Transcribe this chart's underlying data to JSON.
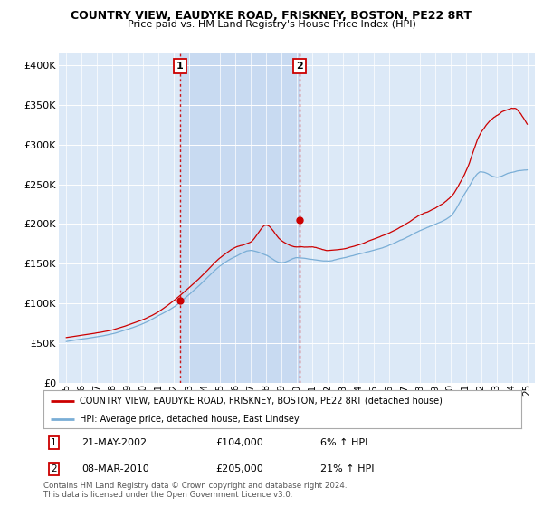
{
  "title": "COUNTRY VIEW, EAUDYKE ROAD, FRISKNEY, BOSTON, PE22 8RT",
  "subtitle": "Price paid vs. HM Land Registry's House Price Index (HPI)",
  "ylabel_ticks": [
    "£0",
    "£50K",
    "£100K",
    "£150K",
    "£200K",
    "£250K",
    "£300K",
    "£350K",
    "£400K"
  ],
  "ylabel_values": [
    0,
    50000,
    100000,
    150000,
    200000,
    250000,
    300000,
    350000,
    400000
  ],
  "ylim": [
    0,
    415000
  ],
  "xlim_start": 1994.5,
  "xlim_end": 2025.5,
  "background_color": "#dce9f7",
  "grid_color": "#ffffff",
  "red_line_color": "#cc0000",
  "blue_line_color": "#7aaed6",
  "vline_color": "#cc0000",
  "shade_color": "#c5d8f0",
  "purchase1_x": 2002.38,
  "purchase1_y": 104000,
  "purchase2_x": 2010.18,
  "purchase2_y": 205000,
  "legend_red": "COUNTRY VIEW, EAUDYKE ROAD, FRISKNEY, BOSTON, PE22 8RT (detached house)",
  "legend_blue": "HPI: Average price, detached house, East Lindsey",
  "ann1_label": "1",
  "ann1_date": "21-MAY-2002",
  "ann1_price": "£104,000",
  "ann1_hpi": "6% ↑ HPI",
  "ann2_label": "2",
  "ann2_date": "08-MAR-2010",
  "ann2_price": "£205,000",
  "ann2_hpi": "21% ↑ HPI",
  "footnote": "Contains HM Land Registry data © Crown copyright and database right 2024.\nThis data is licensed under the Open Government Licence v3.0.",
  "xtick_labels": [
    "95",
    "96",
    "97",
    "98",
    "99",
    "00",
    "01",
    "02",
    "03",
    "04",
    "05",
    "06",
    "07",
    "08",
    "09",
    "10",
    "11",
    "12",
    "13",
    "14",
    "15",
    "16",
    "17",
    "18",
    "19",
    "20",
    "21",
    "22",
    "23",
    "24",
    "25"
  ],
  "xtick_years": [
    1995,
    1996,
    1997,
    1998,
    1999,
    2000,
    2001,
    2002,
    2003,
    2004,
    2005,
    2006,
    2007,
    2008,
    2009,
    2010,
    2011,
    2012,
    2013,
    2014,
    2015,
    2016,
    2017,
    2018,
    2019,
    2020,
    2021,
    2022,
    2023,
    2024,
    2025
  ]
}
